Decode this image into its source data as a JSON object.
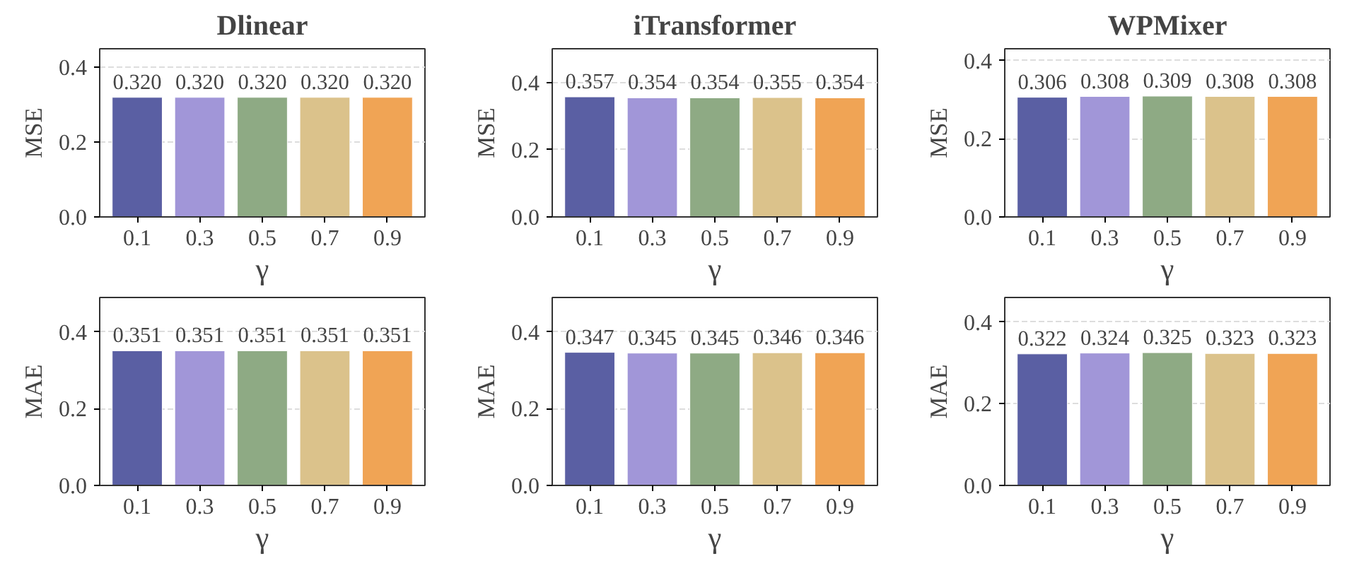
{
  "chart_data": [
    {
      "type": "bar",
      "title": "Dlinear",
      "xlabel": "γ",
      "ylabel": "MSE",
      "categories": [
        "0.1",
        "0.3",
        "0.5",
        "0.7",
        "0.9"
      ],
      "values": [
        0.32,
        0.32,
        0.32,
        0.32,
        0.32
      ],
      "colors": [
        "#5a5fa3",
        "#a196d8",
        "#8eaa84",
        "#dbc28b",
        "#f0a455"
      ],
      "ylim": [
        0,
        0.45
      ],
      "yticks": [
        {
          "value": 0,
          "label": "0.0"
        },
        {
          "value": 0.2,
          "label": "0.2"
        },
        {
          "value": 0.4,
          "label": "0.4"
        }
      ],
      "grid": "y",
      "data_labels": true,
      "value_labels": [
        "0.320",
        "0.320",
        "0.320",
        "0.320",
        "0.320"
      ]
    },
    {
      "type": "bar",
      "title": "iTransformer",
      "xlabel": "γ",
      "ylabel": "MSE",
      "categories": [
        "0.1",
        "0.3",
        "0.5",
        "0.7",
        "0.9"
      ],
      "values": [
        0.357,
        0.354,
        0.354,
        0.355,
        0.354
      ],
      "colors": [
        "#5a5fa3",
        "#a196d8",
        "#8eaa84",
        "#dbc28b",
        "#f0a455"
      ],
      "ylim": [
        0,
        0.5
      ],
      "yticks": [
        {
          "value": 0,
          "label": "0.0"
        },
        {
          "value": 0.2,
          "label": "0.2"
        },
        {
          "value": 0.4,
          "label": "0.4"
        }
      ],
      "grid": "y",
      "data_labels": true
    },
    {
      "type": "bar",
      "title": "WPMixer",
      "xlabel": "γ",
      "ylabel": "MSE",
      "categories": [
        "0.1",
        "0.3",
        "0.5",
        "0.7",
        "0.9"
      ],
      "values": [
        0.306,
        0.308,
        0.309,
        0.308,
        0.308
      ],
      "colors": [
        "#5a5fa3",
        "#a196d8",
        "#8eaa84",
        "#dbc28b",
        "#f0a455"
      ],
      "ylim": [
        0,
        0.43
      ],
      "yticks": [
        {
          "value": 0,
          "label": "0.0"
        },
        {
          "value": 0.2,
          "label": "0.2"
        },
        {
          "value": 0.4,
          "label": "0.4"
        }
      ],
      "grid": "y",
      "data_labels": true
    },
    {
      "type": "bar",
      "xlabel": "γ",
      "ylabel": "MAE",
      "categories": [
        "0.1",
        "0.3",
        "0.5",
        "0.7",
        "0.9"
      ],
      "values": [
        0.351,
        0.351,
        0.351,
        0.351,
        0.351
      ],
      "colors": [
        "#5a5fa3",
        "#a196d8",
        "#8eaa84",
        "#dbc28b",
        "#f0a455"
      ],
      "ylim": [
        0,
        0.49
      ],
      "yticks": [
        {
          "value": 0,
          "label": "0.0"
        },
        {
          "value": 0.2,
          "label": "0.2"
        },
        {
          "value": 0.4,
          "label": "0.4"
        }
      ],
      "grid": "y",
      "data_labels": true
    },
    {
      "type": "bar",
      "xlabel": "γ",
      "ylabel": "MAE",
      "categories": [
        "0.1",
        "0.3",
        "0.5",
        "0.7",
        "0.9"
      ],
      "values": [
        0.347,
        0.345,
        0.345,
        0.346,
        0.346
      ],
      "colors": [
        "#5a5fa3",
        "#a196d8",
        "#8eaa84",
        "#dbc28b",
        "#f0a455"
      ],
      "ylim": [
        0,
        0.49
      ],
      "yticks": [
        {
          "value": 0,
          "label": "0.0"
        },
        {
          "value": 0.2,
          "label": "0.2"
        },
        {
          "value": 0.4,
          "label": "0.4"
        }
      ],
      "grid": "y",
      "data_labels": true
    },
    {
      "type": "bar",
      "xlabel": "γ",
      "ylabel": "MAE",
      "categories": [
        "0.1",
        "0.3",
        "0.5",
        "0.7",
        "0.9"
      ],
      "values": [
        0.322,
        0.324,
        0.325,
        0.323,
        0.323
      ],
      "colors": [
        "#5a5fa3",
        "#a196d8",
        "#8eaa84",
        "#dbc28b",
        "#f0a455"
      ],
      "ylim": [
        0,
        0.46
      ],
      "yticks": [
        {
          "value": 0,
          "label": "0.0"
        },
        {
          "value": 0.2,
          "label": "0.2"
        },
        {
          "value": 0.4,
          "label": "0.4"
        }
      ],
      "grid": "y",
      "data_labels": true
    }
  ]
}
